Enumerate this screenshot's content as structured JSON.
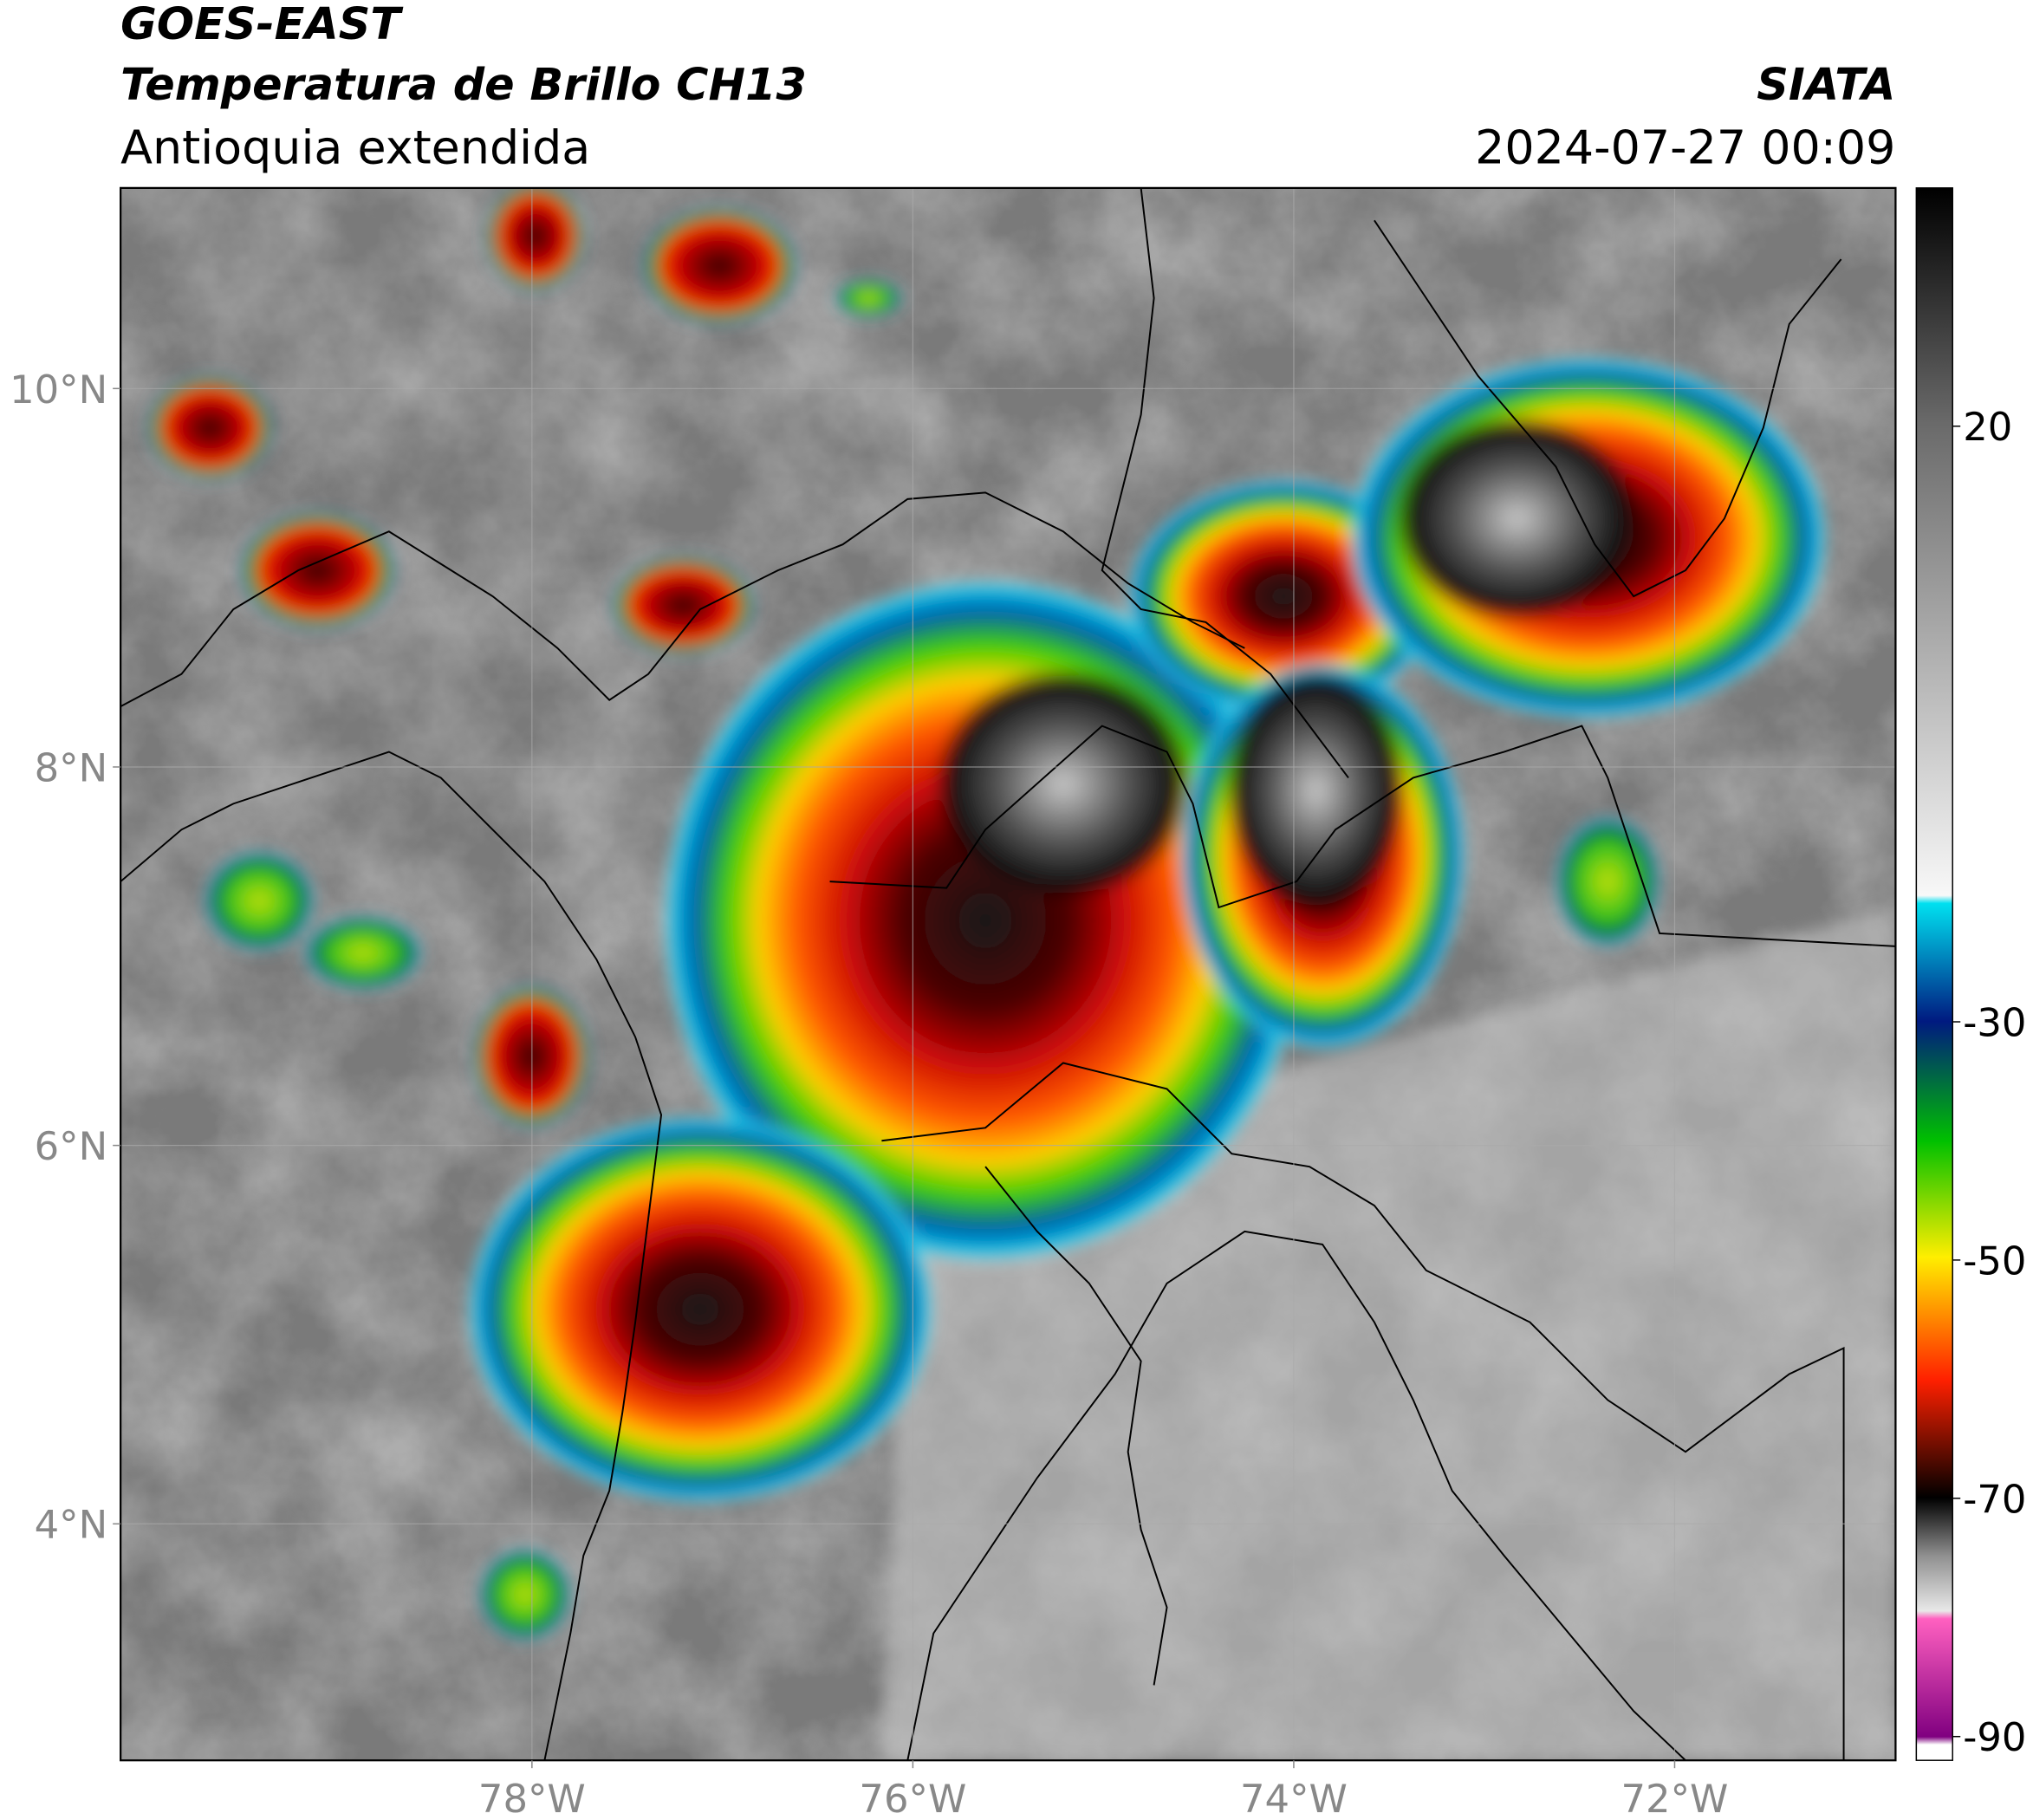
{
  "header": {
    "satellite": "GOES-EAST",
    "product": "Temperatura de Brillo CH13",
    "region": "Antioquia extendida",
    "source": "SIATA",
    "datetime": "2024-07-27 00:09"
  },
  "chart_data": {
    "type": "map",
    "xlim": [
      -80.16,
      -70.84
    ],
    "ylim": [
      2.75,
      11.06
    ],
    "xticks": [
      {
        "value": -78,
        "label": "78°W"
      },
      {
        "value": -76,
        "label": "76°W"
      },
      {
        "value": -74,
        "label": "74°W"
      },
      {
        "value": -72,
        "label": "72°W"
      }
    ],
    "yticks": [
      {
        "value": 10,
        "label": "10°N"
      },
      {
        "value": 8,
        "label": "8°N"
      },
      {
        "value": 6,
        "label": "6°N"
      },
      {
        "value": 4,
        "label": "4°N"
      }
    ],
    "grid": true,
    "colorbar": {
      "lim": [
        -92,
        40
      ],
      "ticks": [
        20,
        -30,
        -50,
        -70,
        -90
      ]
    }
  }
}
